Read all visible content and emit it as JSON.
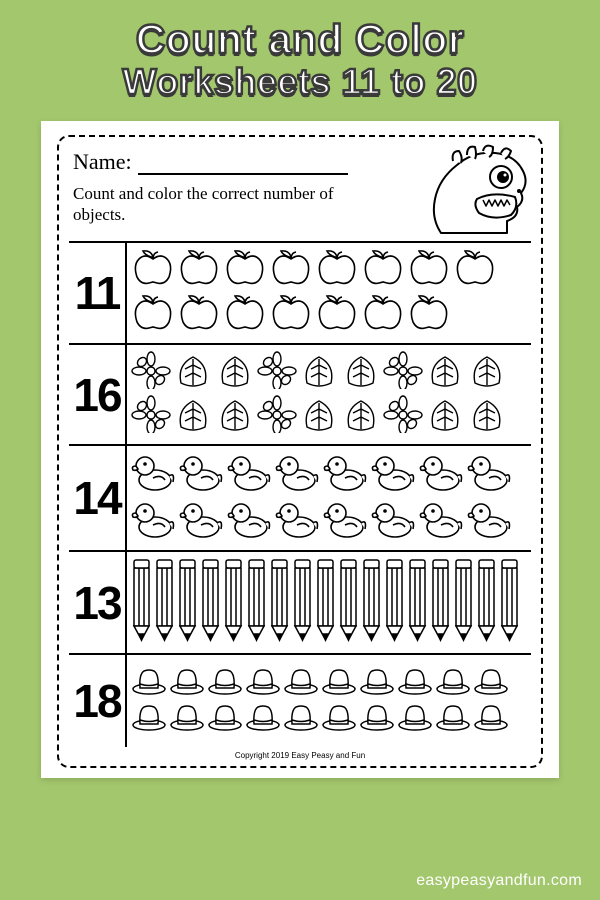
{
  "header": {
    "title": "Count and Color",
    "subtitle": "Worksheets 11 to 20"
  },
  "worksheet": {
    "name_label": "Name:",
    "instruction": "Count and color the correct number of objects.",
    "copyright": "Copyright 2019    Easy Peasy and Fun",
    "rows": [
      {
        "number": "11",
        "object": "apple",
        "count": 15,
        "per_row": 8
      },
      {
        "number": "16",
        "object": "leaf",
        "count": 18,
        "per_row": 9
      },
      {
        "number": "14",
        "object": "duck",
        "count": 16,
        "per_row": 8
      },
      {
        "number": "13",
        "object": "pencil",
        "count": 17,
        "per_row": 17
      },
      {
        "number": "18",
        "object": "hat",
        "count": 20,
        "per_row": 10
      }
    ]
  },
  "watermark": "easypeasyandfun.com",
  "colors": {
    "background": "#a3c76d",
    "sheet": "#ffffff",
    "stroke": "#000000",
    "title_fill": "#ffffff",
    "title_stroke": "#3a3a3a"
  }
}
